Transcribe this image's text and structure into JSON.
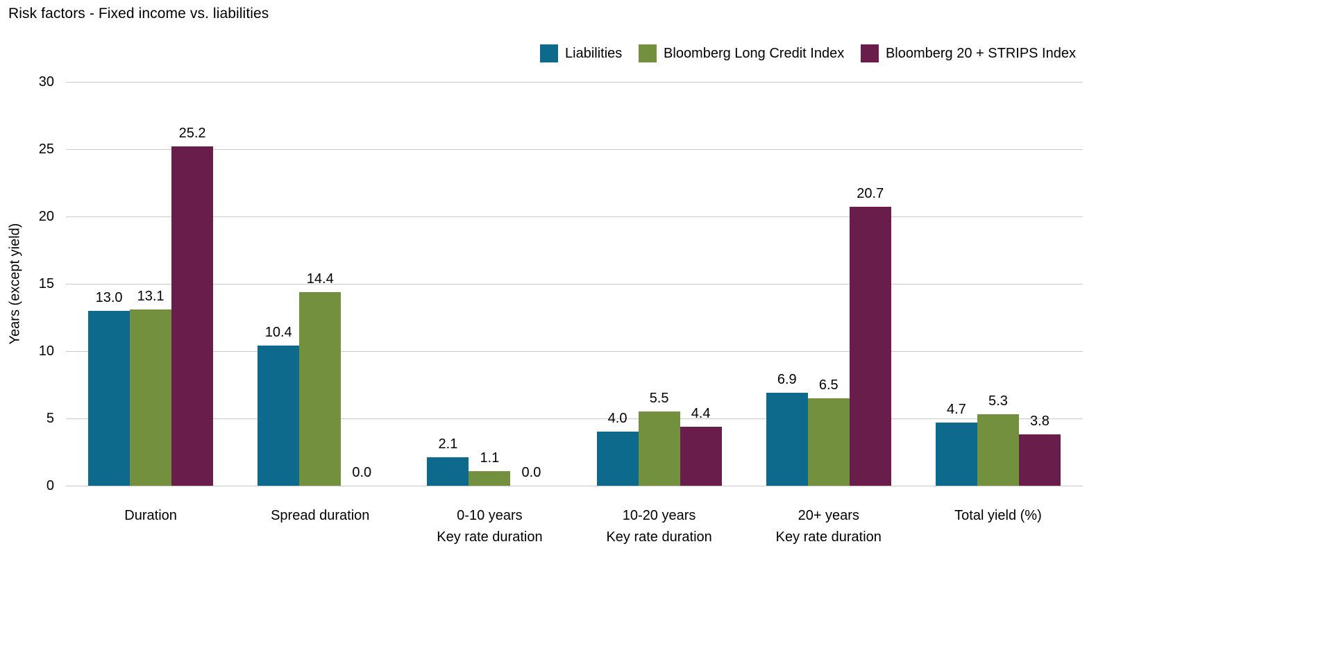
{
  "title": "Risk factors - Fixed income vs. liabilities",
  "chart_data": {
    "type": "bar",
    "categories": [
      "Duration",
      "Spread duration",
      "0-10 years\nKey rate duration",
      "10-20 years\nKey rate duration",
      "20+ years\nKey rate duration",
      "Total yield (%)"
    ],
    "series": [
      {
        "name": "Liabilities",
        "color": "#0e6a8d",
        "values": [
          13.0,
          10.4,
          2.1,
          4.0,
          6.9,
          4.7
        ]
      },
      {
        "name": "Bloomberg Long Credit Index",
        "color": "#72903e",
        "values": [
          13.1,
          14.4,
          1.1,
          5.5,
          6.5,
          5.3
        ]
      },
      {
        "name": "Bloomberg 20 + STRIPS Index",
        "color": "#691d4b",
        "values": [
          25.2,
          0.0,
          0.0,
          4.4,
          20.7,
          3.8
        ]
      }
    ],
    "xlabel": "",
    "ylabel": "Years (except yield)",
    "ylim": [
      0,
      30
    ],
    "yticks": [
      0,
      5,
      10,
      15,
      20,
      25,
      30
    ],
    "grid": true,
    "legend_position": "top-right",
    "value_labels_decimals": 1
  }
}
